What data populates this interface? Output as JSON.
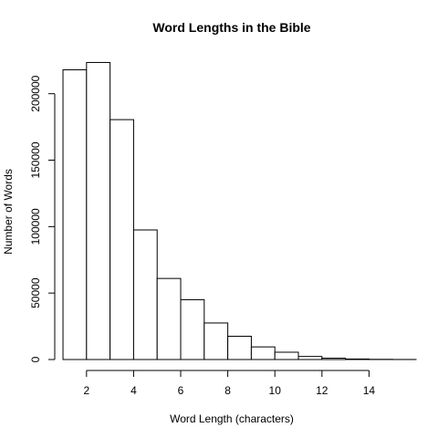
{
  "chart_data": {
    "type": "bar",
    "title": "Word Lengths in the Bible",
    "xlabel": "Word Length (characters)",
    "ylabel": "Number of Words",
    "bins": [
      {
        "start": 1,
        "end": 2,
        "value": 218000
      },
      {
        "start": 2,
        "end": 3,
        "value": 223500
      },
      {
        "start": 3,
        "end": 4,
        "value": 180500
      },
      {
        "start": 4,
        "end": 5,
        "value": 97500
      },
      {
        "start": 5,
        "end": 6,
        "value": 61000
      },
      {
        "start": 6,
        "end": 7,
        "value": 45000
      },
      {
        "start": 7,
        "end": 8,
        "value": 27500
      },
      {
        "start": 8,
        "end": 9,
        "value": 17500
      },
      {
        "start": 9,
        "end": 10,
        "value": 9500
      },
      {
        "start": 10,
        "end": 11,
        "value": 5500
      },
      {
        "start": 11,
        "end": 12,
        "value": 2300
      },
      {
        "start": 12,
        "end": 13,
        "value": 1000
      },
      {
        "start": 13,
        "end": 14,
        "value": 400
      },
      {
        "start": 14,
        "end": 15,
        "value": 150
      },
      {
        "start": 15,
        "end": 16,
        "value": 50
      }
    ],
    "xlim": [
      0.65,
      16
    ],
    "ylim": [
      0,
      230000
    ],
    "x_ticks": [
      2,
      4,
      6,
      8,
      10,
      12,
      14
    ],
    "y_ticks": [
      0,
      50000,
      100000,
      150000,
      200000
    ],
    "grid": false,
    "legend": "none",
    "bar_fill": "#ffffff",
    "bar_stroke": "#000000"
  }
}
